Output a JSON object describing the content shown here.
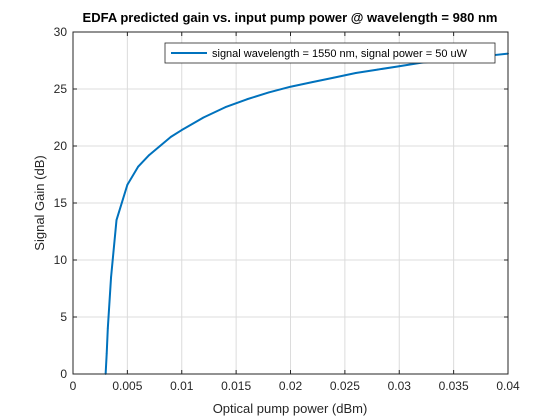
{
  "chart_data": {
    "type": "line",
    "title": "EDFA predicted gain vs. input pump power @ wavelength = 980 nm",
    "xlabel": "Optical pump power (dBm)",
    "ylabel": "Signal Gain (dB)",
    "xlim": [
      0,
      0.04
    ],
    "ylim": [
      0,
      30
    ],
    "xticks": [
      0,
      0.005,
      0.01,
      0.015,
      0.02,
      0.025,
      0.03,
      0.035,
      0.04
    ],
    "xtick_labels": [
      "0",
      "0.005",
      "0.01",
      "0.015",
      "0.02",
      "0.025",
      "0.03",
      "0.035",
      "0.04"
    ],
    "yticks": [
      0,
      5,
      10,
      15,
      20,
      25,
      30
    ],
    "ytick_labels": [
      "0",
      "5",
      "10",
      "15",
      "20",
      "25",
      "30"
    ],
    "grid": true,
    "legend_position": "top-right",
    "series": [
      {
        "name": "signal wavelength = 1550 nm, signal power = 50 uW",
        "color": "#0072BD",
        "x": [
          0.003,
          0.0031,
          0.0032,
          0.0035,
          0.004,
          0.005,
          0.006,
          0.007,
          0.008,
          0.009,
          0.01,
          0.012,
          0.014,
          0.016,
          0.018,
          0.02,
          0.022,
          0.024,
          0.026,
          0.028,
          0.03,
          0.032,
          0.034,
          0.036,
          0.038,
          0.04
        ],
        "y": [
          0,
          1.8,
          4.0,
          8.5,
          13.5,
          16.6,
          18.2,
          19.2,
          20.0,
          20.8,
          21.4,
          22.5,
          23.4,
          24.1,
          24.7,
          25.2,
          25.6,
          26.0,
          26.4,
          26.7,
          27.0,
          27.3,
          27.5,
          27.7,
          27.9,
          28.1
        ]
      }
    ]
  }
}
